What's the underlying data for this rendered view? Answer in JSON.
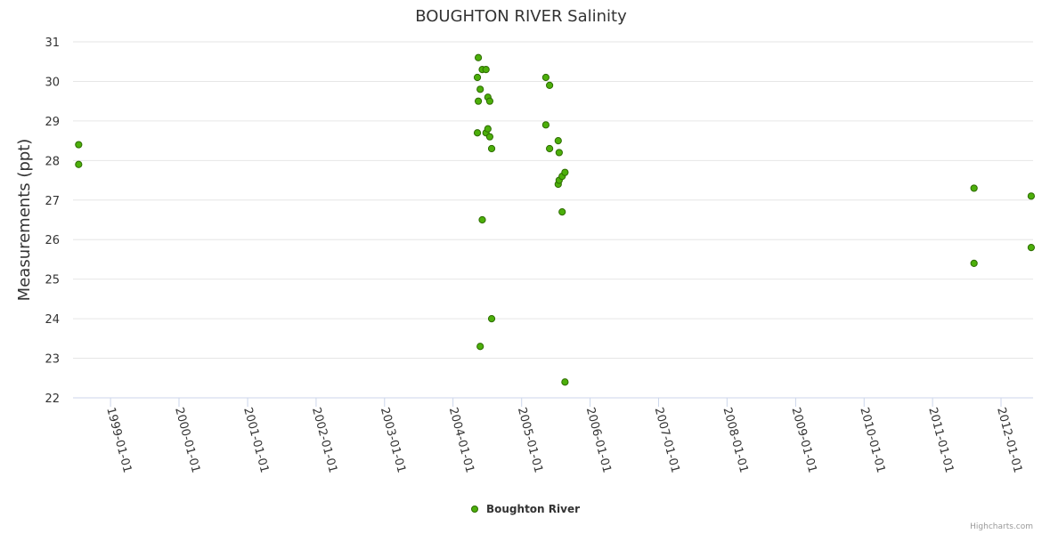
{
  "chart_data": {
    "type": "scatter",
    "title": "BOUGHTON RIVER Salinity",
    "xlabel": "",
    "ylabel": "Measurements (ppt)",
    "ylim": [
      22,
      31
    ],
    "yticks": [
      "22",
      "23",
      "24",
      "25",
      "26",
      "27",
      "28",
      "29",
      "30",
      "31"
    ],
    "xlim": [
      "1998-06-15",
      "2012-06-20"
    ],
    "xticks": [
      {
        "label": "1999-01-01",
        "date": "1999-01-01"
      },
      {
        "label": "2000-01-01",
        "date": "2000-01-01"
      },
      {
        "label": "2001-01-01",
        "date": "2001-01-01"
      },
      {
        "label": "2002-01-01",
        "date": "2002-01-01"
      },
      {
        "label": "2003-01-01",
        "date": "2003-01-01"
      },
      {
        "label": "2004-01-01",
        "date": "2004-01-01"
      },
      {
        "label": "2005-01-01",
        "date": "2005-01-01"
      },
      {
        "label": "2006-01-01",
        "date": "2006-01-01"
      },
      {
        "label": "2007-01-01",
        "date": "2007-01-01"
      },
      {
        "label": "2008-01-01",
        "date": "2008-01-01"
      },
      {
        "label": "2009-01-01",
        "date": "2009-01-01"
      },
      {
        "label": "2010-01-01",
        "date": "2010-01-01"
      },
      {
        "label": "2011-01-01",
        "date": "2011-01-01"
      },
      {
        "label": "2012-01-01",
        "date": "2012-01-01"
      }
    ],
    "grid": "horizontal",
    "legend_position": "bottom-center",
    "series": [
      {
        "name": "Boughton River",
        "color": "#4caf0a",
        "points": [
          {
            "x": "1998-07-15",
            "y": 28.4
          },
          {
            "x": "1998-07-15",
            "y": 27.9
          },
          {
            "x": "2004-05-10",
            "y": 30.1
          },
          {
            "x": "2004-05-10",
            "y": 28.7
          },
          {
            "x": "2004-05-15",
            "y": 30.6
          },
          {
            "x": "2004-05-15",
            "y": 29.5
          },
          {
            "x": "2004-05-25",
            "y": 29.8
          },
          {
            "x": "2004-05-25",
            "y": 23.3
          },
          {
            "x": "2004-06-05",
            "y": 30.3
          },
          {
            "x": "2004-06-05",
            "y": 26.5
          },
          {
            "x": "2004-06-25",
            "y": 30.3
          },
          {
            "x": "2004-06-25",
            "y": 28.7
          },
          {
            "x": "2004-07-05",
            "y": 29.6
          },
          {
            "x": "2004-07-05",
            "y": 28.8
          },
          {
            "x": "2004-07-15",
            "y": 29.5
          },
          {
            "x": "2004-07-15",
            "y": 28.6
          },
          {
            "x": "2004-07-25",
            "y": 28.3
          },
          {
            "x": "2004-07-25",
            "y": 24.0
          },
          {
            "x": "2005-05-10",
            "y": 30.1
          },
          {
            "x": "2005-05-10",
            "y": 28.9
          },
          {
            "x": "2005-05-30",
            "y": 29.9
          },
          {
            "x": "2005-05-30",
            "y": 28.3
          },
          {
            "x": "2005-07-15",
            "y": 28.5
          },
          {
            "x": "2005-07-15",
            "y": 27.4
          },
          {
            "x": "2005-07-20",
            "y": 28.2
          },
          {
            "x": "2005-07-20",
            "y": 27.5
          },
          {
            "x": "2005-08-05",
            "y": 27.6
          },
          {
            "x": "2005-08-05",
            "y": 26.7
          },
          {
            "x": "2005-08-20",
            "y": 27.7
          },
          {
            "x": "2005-08-20",
            "y": 22.4
          },
          {
            "x": "2011-08-10",
            "y": 27.3
          },
          {
            "x": "2011-08-10",
            "y": 25.4
          },
          {
            "x": "2012-06-10",
            "y": 27.1
          },
          {
            "x": "2012-06-10",
            "y": 25.8
          }
        ]
      }
    ]
  },
  "legend": {
    "item_label": "Boughton River"
  },
  "credits": {
    "text": "Highcharts.com"
  }
}
